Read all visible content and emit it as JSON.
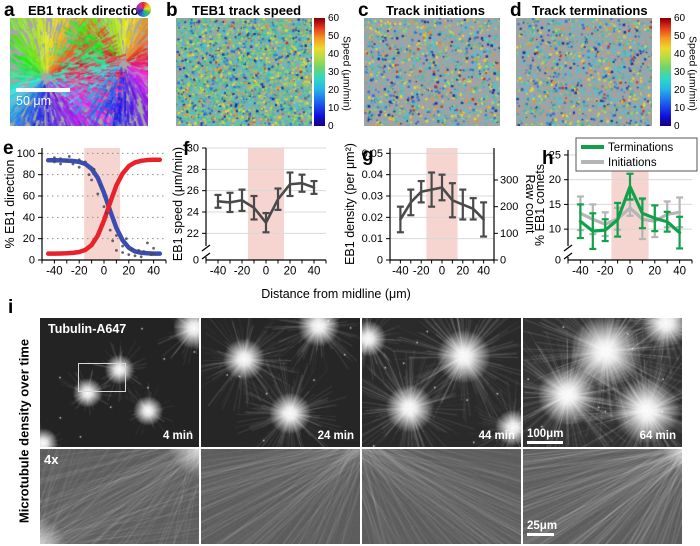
{
  "panels": {
    "a": {
      "letter": "a",
      "title": "EB1 track direction",
      "scale_bar": "50 μm"
    },
    "b": {
      "letter": "b",
      "title": "TEB1 track speed"
    },
    "c": {
      "letter": "c",
      "title": "Track initiations"
    },
    "d": {
      "letter": "d",
      "title": "Track terminations"
    }
  },
  "colorbar": {
    "label": "Speed (μm/min)",
    "ticks": [
      0,
      10,
      20,
      30,
      40,
      50,
      60
    ]
  },
  "shared_xlabel": "Distance from midline (μm)",
  "chart_data": [
    {
      "id": "e",
      "letter": "e",
      "type": "line",
      "title": "",
      "ylabel": "% EB1 direction",
      "xlabel": "",
      "xlim": [
        -50,
        50
      ],
      "ylim": [
        0,
        105
      ],
      "xticks": [
        -40,
        -20,
        0,
        20,
        40
      ],
      "xminor": 10,
      "yticks": [
        0,
        20,
        40,
        60,
        80,
        100
      ],
      "grid": "dotted",
      "band": [
        -16,
        13
      ],
      "series": [
        {
          "name": "rightward fit",
          "color": "#e8212b",
          "width": 4.5,
          "x": [
            -45,
            -40,
            -35,
            -30,
            -25,
            -20,
            -15,
            -10,
            -5,
            0,
            5,
            10,
            15,
            20,
            25,
            30,
            35,
            40,
            45
          ],
          "y": [
            6,
            6,
            6.1,
            6.3,
            6.7,
            7.5,
            9.5,
            14,
            23,
            37,
            54,
            70,
            81,
            88,
            91.5,
            93,
            93.7,
            94,
            94
          ]
        },
        {
          "name": "leftward fit",
          "color": "#3a4db4",
          "width": 4.5,
          "x": [
            -45,
            -40,
            -35,
            -30,
            -25,
            -20,
            -15,
            -10,
            -5,
            0,
            5,
            10,
            15,
            20,
            25,
            30,
            35,
            40,
            45
          ],
          "y": [
            93.5,
            93.5,
            93.4,
            93.2,
            92.8,
            92,
            90,
            85.5,
            77,
            63,
            46,
            30,
            18.5,
            11.5,
            8,
            6.8,
            6.3,
            6,
            6
          ]
        }
      ],
      "scatter": {
        "color": "#4a4a4a",
        "pts": [
          [
            -40,
            92
          ],
          [
            -40,
            96
          ],
          [
            -35,
            90
          ],
          [
            -35,
            95
          ],
          [
            -30,
            93
          ],
          [
            -28,
            97
          ],
          [
            -25,
            90
          ],
          [
            -20,
            87
          ],
          [
            -20,
            94
          ],
          [
            -15,
            92
          ],
          [
            -12,
            80
          ],
          [
            -10,
            75
          ],
          [
            -8,
            85
          ],
          [
            -5,
            62
          ],
          [
            -3,
            70
          ],
          [
            0,
            50
          ],
          [
            2,
            44
          ],
          [
            5,
            28
          ],
          [
            7,
            18
          ],
          [
            10,
            9
          ],
          [
            10,
            23
          ],
          [
            15,
            7
          ],
          [
            15,
            13
          ],
          [
            18,
            20
          ],
          [
            20,
            5
          ],
          [
            22,
            10
          ],
          [
            25,
            4
          ],
          [
            28,
            9
          ],
          [
            30,
            3
          ],
          [
            32,
            8
          ],
          [
            35,
            16
          ],
          [
            38,
            5
          ],
          [
            40,
            6
          ],
          [
            40,
            11
          ]
        ]
      }
    },
    {
      "id": "f",
      "letter": "f",
      "type": "line",
      "title": "",
      "ylabel": "EB1 speed (μm/min)",
      "xlabel": "Distance from midline (μm)",
      "xlim": [
        -50,
        50
      ],
      "ylim": [
        21,
        30
      ],
      "xticks": [
        -40,
        -20,
        0,
        20,
        40
      ],
      "xminor": 10,
      "yticks": [
        22,
        24,
        26,
        28,
        30
      ],
      "ybreak": {
        "zero_label": "0"
      },
      "grid": "solid",
      "band": [
        -15,
        15
      ],
      "series": [
        {
          "name": "EB1 speed",
          "color": "#4a4a4a",
          "width": 2.6,
          "x": [
            -40,
            -30,
            -20,
            -10,
            0,
            10,
            20,
            30,
            40
          ],
          "y": [
            25.0,
            24.9,
            25.1,
            24.4,
            23.0,
            25.2,
            26.6,
            26.7,
            26.3
          ],
          "err": [
            0.6,
            0.9,
            1.0,
            1.1,
            0.9,
            1.0,
            1.1,
            0.8,
            0.6
          ]
        }
      ]
    },
    {
      "id": "g",
      "letter": "g",
      "type": "line",
      "title": "",
      "ylabel": "EB1 density (per μm²)",
      "xlabel": "Distance from midline (μm)",
      "xlim": [
        -50,
        50
      ],
      "ylim": [
        0,
        0.0525
      ],
      "xticks": [
        -40,
        -20,
        0,
        20,
        40
      ],
      "xminor": 10,
      "yticks": [
        0,
        0.01,
        0.02,
        0.03,
        0.04,
        0.05
      ],
      "grid": "solid",
      "band": [
        -15,
        15
      ],
      "y2": {
        "label": "Raw count",
        "ticks": [
          0,
          100,
          200,
          300
        ],
        "scale": 8000
      },
      "series": [
        {
          "name": "EB1 density",
          "color": "#4a4a4a",
          "width": 2.6,
          "x": [
            -40,
            -30,
            -20,
            -10,
            0,
            10,
            20,
            30,
            40
          ],
          "y": [
            0.019,
            0.027,
            0.032,
            0.033,
            0.034,
            0.028,
            0.026,
            0.024,
            0.019
          ],
          "err": [
            0.006,
            0.006,
            0.005,
            0.008,
            0.006,
            0.008,
            0.007,
            0.005,
            0.008
          ]
        }
      ]
    },
    {
      "id": "h",
      "letter": "h",
      "type": "line",
      "title": "",
      "ylabel": "% EB1 comets",
      "xlabel": "",
      "xlim": [
        -50,
        50
      ],
      "ylim": [
        7,
        26
      ],
      "xticks": [
        -40,
        -20,
        0,
        20,
        40
      ],
      "xminor": 10,
      "yticks": [
        10,
        15,
        20,
        25
      ],
      "ybreak": {
        "zero_label": "0"
      },
      "grid": "solid",
      "band": [
        -15,
        15
      ],
      "legend": true,
      "series": [
        {
          "name": "Terminations",
          "color": "#12a14b",
          "width": 3.2,
          "x": [
            -40,
            -30,
            -20,
            -10,
            0,
            10,
            20,
            30,
            40
          ],
          "y": [
            11.6,
            9.6,
            9.8,
            11.9,
            18.6,
            13.2,
            12.2,
            11.5,
            9.3
          ],
          "err": [
            3.4,
            3.6,
            2.2,
            3.4,
            2.6,
            3.0,
            2.6,
            2.0,
            3.2
          ]
        },
        {
          "name": "Initiations",
          "color": "#b5b5b5",
          "width": 3.2,
          "x": [
            -40,
            -30,
            -20,
            -10,
            0,
            10,
            20,
            30,
            40
          ],
          "y": [
            13.2,
            12.0,
            11.0,
            12.1,
            14.3,
            12.0,
            11.6,
            13.0,
            13.4
          ],
          "err": [
            3.4,
            3.0,
            2.4,
            2.2,
            1.6,
            4.0,
            3.2,
            2.6,
            3.0
          ]
        }
      ]
    }
  ],
  "panel_i": {
    "letter": "i",
    "row_label": "Microtubule density over time",
    "marker_label": "Tubulin-A647",
    "zoom_label": "4x",
    "timestamps": [
      "4 min",
      "24 min",
      "44 min",
      "64 min"
    ],
    "scalebar_top": "100μm",
    "scalebar_bottom": "25μm"
  }
}
